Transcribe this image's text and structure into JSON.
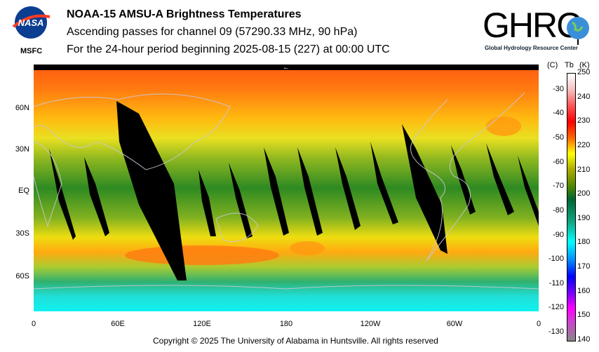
{
  "header": {
    "line1": "NOAA-15 AMSU-A Brightness Temperatures",
    "line2": "Ascending passes for channel 09 (57290.33 MHz, 90 hPa)",
    "line3": "For the 24-hour period beginning 2025-08-15 (227) at 00:00 UTC"
  },
  "logos": {
    "nasa": "NASA",
    "nasa_sub": "MSFC",
    "ghrc": "GHRC",
    "ghrc_sub": "Global Hydrology Resource Center"
  },
  "map": {
    "lat_labels": [
      "60N",
      "30N",
      "EQ",
      "30S",
      "60S"
    ],
    "lon_labels": [
      "0",
      "60E",
      "120E",
      "180",
      "120W",
      "60W",
      "0"
    ],
    "arrow": "←"
  },
  "colorbar": {
    "header_c": "(C)",
    "header_tb": "Tb",
    "header_k": "(K)",
    "kelvin_ticks": [
      "250",
      "240",
      "230",
      "220",
      "210",
      "200",
      "190",
      "180",
      "170",
      "160",
      "150",
      "140"
    ],
    "celsius_ticks": [
      "-30",
      "-40",
      "-50",
      "-60",
      "-70",
      "-80",
      "-90",
      "-100",
      "-110",
      "-120",
      "-130"
    ],
    "range_k": [
      140,
      250
    ]
  },
  "footer": {
    "copyright": "Copyright © 2025 The University of Alabama in Huntsville.  All rights reserved"
  }
}
